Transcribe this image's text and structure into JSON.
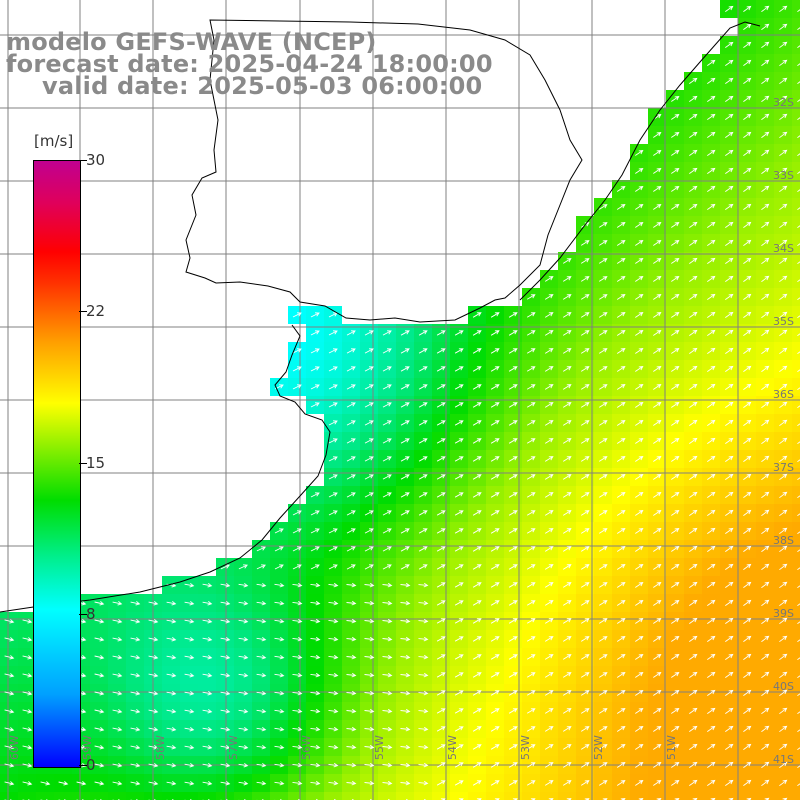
{
  "header": {
    "model": "modelo GEFS-WAVE (NCEP)",
    "forecast": "forecast date: 2025-04-24 18:00:00",
    "valid": "valid date: 2025-05-03 06:00:00"
  },
  "colorbar": {
    "unit": "[m/s]",
    "ticks": [
      {
        "label": "30",
        "value": 30
      },
      {
        "label": "22",
        "value": 22
      },
      {
        "label": "15",
        "value": 15
      },
      {
        "label": "8",
        "value": 8
      },
      {
        "label": "0",
        "value": 0
      }
    ],
    "range": [
      0,
      30
    ],
    "colors": [
      "#0000ff",
      "#00a0ff",
      "#00ffff",
      "#00dd00",
      "#ffff00",
      "#ffa000",
      "#ff0000",
      "#c00090"
    ]
  },
  "map": {
    "lat_labels": [
      "32S",
      "33S",
      "34S",
      "35S",
      "36S",
      "37S",
      "38S",
      "39S",
      "40S",
      "41S"
    ],
    "lon_labels": [
      "60W",
      "59W",
      "58W",
      "57W",
      "56W",
      "55W",
      "54W",
      "53W",
      "52W",
      "51W"
    ],
    "land_color": "#ffffff",
    "grid_color": "#808080",
    "coast_color": "#000000",
    "arrow_color": "#ffffff"
  }
}
